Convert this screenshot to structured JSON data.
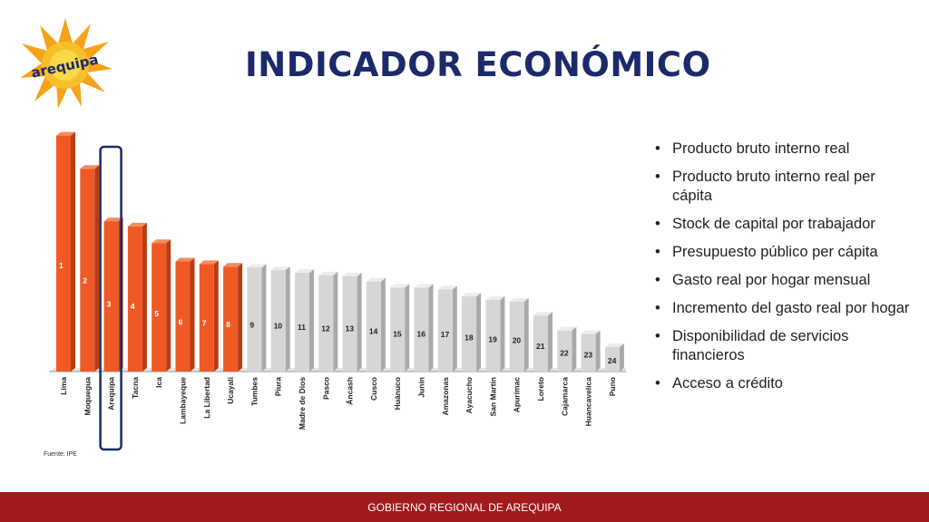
{
  "header": {
    "title": "INDICADOR ECONÓMICO",
    "logo_text": "arequipa"
  },
  "colors": {
    "title": "#1b2a6b",
    "bar_highlight": "#ef5a24",
    "bar_default": "#d6d6d6",
    "selection_box": "#1b2a6b",
    "footer": "#a31a1d"
  },
  "chart_data": {
    "type": "bar",
    "categories": [
      "Lima",
      "Moquegua",
      "Arequipa",
      "Tacna",
      "Ica",
      "Lambayeque",
      "La Libertad",
      "Ucayali",
      "Tumbes",
      "Piura",
      "Madre de Dios",
      "Pasco",
      "Áncash",
      "Cusco",
      "Huánuco",
      "Junín",
      "Amazonas",
      "Ayacucho",
      "San Martín",
      "Apurímac",
      "Loreto",
      "Cajamarca",
      "Huancavelica",
      "Puno"
    ],
    "values": [
      270,
      232,
      172,
      166,
      147,
      126,
      123,
      120,
      119,
      116,
      113,
      110,
      109,
      103,
      96,
      96,
      94,
      86,
      82,
      80,
      64,
      47,
      43,
      28
    ],
    "data_labels": [
      "1",
      "2",
      "3",
      "4",
      "5",
      "6",
      "7",
      "8",
      "9",
      "10",
      "11",
      "12",
      "13",
      "14",
      "15",
      "16",
      "17",
      "18",
      "19",
      "20",
      "21",
      "22",
      "23",
      "24"
    ],
    "highlighted_top": 8,
    "selected_category": "Arequipa",
    "ylim": [
      0,
      280
    ],
    "source": "Fuente: IPE"
  },
  "indicators": [
    "Producto bruto interno real",
    "Producto bruto interno real per cápita",
    "Stock de capital por trabajador",
    "Presupuesto público per cápita",
    "Gasto real por hogar mensual",
    "Incremento del gasto real por hogar",
    "Disponibilidad de servicios financieros",
    "Acceso a crédito"
  ],
  "bullet_char": "•",
  "footer": {
    "text": "GOBIERNO REGIONAL DE AREQUIPA"
  }
}
